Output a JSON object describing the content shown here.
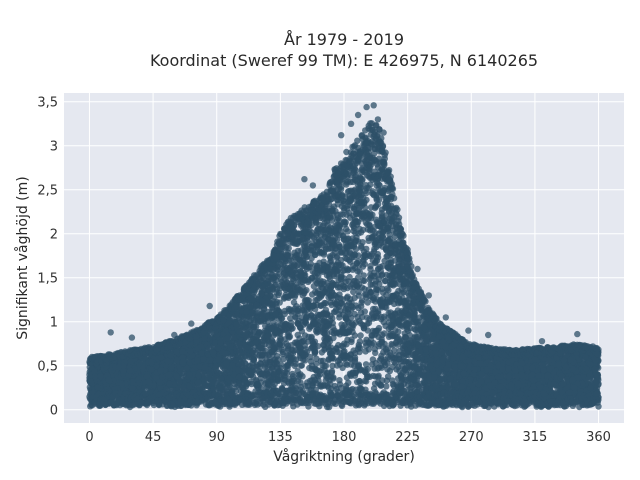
{
  "chart_data": {
    "type": "scatter",
    "title_line1": "År 1979 - 2019",
    "title_line2": "Koordinat (Sweref 99 TM): E 426975, N 6140265",
    "xlabel": "Vågriktning (grader)",
    "ylabel": "Signifikant våghöjd (m)",
    "xlim": [
      -18,
      378
    ],
    "ylim": [
      -0.15,
      3.6
    ],
    "xticks": [
      0,
      45,
      90,
      135,
      180,
      225,
      270,
      315,
      360
    ],
    "yticks": [
      0,
      0.5,
      1,
      1.5,
      2,
      2.5,
      3,
      3.5
    ],
    "ytick_labels": [
      "0",
      "0,5",
      "1",
      "1,5",
      "2",
      "2,5",
      "3",
      "3,5"
    ],
    "grid": true,
    "background": "#e5e8f0",
    "marker_color": "#2e5068",
    "envelope": {
      "x": [
        0,
        10,
        20,
        30,
        45,
        60,
        75,
        90,
        100,
        110,
        120,
        130,
        135,
        140,
        150,
        155,
        160,
        165,
        170,
        175,
        180,
        185,
        190,
        195,
        200,
        205,
        210,
        215,
        220,
        225,
        230,
        240,
        250,
        260,
        270,
        285,
        300,
        315,
        330,
        345,
        360
      ],
      "y_max": [
        0.6,
        0.62,
        0.65,
        0.68,
        0.72,
        0.8,
        0.9,
        1.05,
        1.2,
        1.4,
        1.6,
        1.8,
        2.0,
        2.15,
        2.3,
        2.35,
        2.4,
        2.45,
        2.6,
        2.8,
        2.9,
        3.0,
        3.1,
        3.2,
        3.3,
        3.2,
        2.9,
        2.5,
        2.1,
        1.8,
        1.5,
        1.15,
        0.95,
        0.85,
        0.75,
        0.7,
        0.68,
        0.7,
        0.72,
        0.75,
        0.7
      ]
    },
    "outliers": [
      {
        "x": 15,
        "y": 0.88
      },
      {
        "x": 30,
        "y": 0.82
      },
      {
        "x": 60,
        "y": 0.85
      },
      {
        "x": 72,
        "y": 0.98
      },
      {
        "x": 85,
        "y": 1.18
      },
      {
        "x": 95,
        "y": 1.1
      },
      {
        "x": 152,
        "y": 2.62
      },
      {
        "x": 158,
        "y": 2.55
      },
      {
        "x": 178,
        "y": 3.12
      },
      {
        "x": 185,
        "y": 3.25
      },
      {
        "x": 190,
        "y": 3.35
      },
      {
        "x": 196,
        "y": 3.44
      },
      {
        "x": 201,
        "y": 3.46
      },
      {
        "x": 204,
        "y": 3.3
      },
      {
        "x": 208,
        "y": 3.15
      },
      {
        "x": 225,
        "y": 1.82
      },
      {
        "x": 232,
        "y": 1.6
      },
      {
        "x": 240,
        "y": 1.3
      },
      {
        "x": 252,
        "y": 1.05
      },
      {
        "x": 268,
        "y": 0.9
      },
      {
        "x": 282,
        "y": 0.85
      },
      {
        "x": 320,
        "y": 0.78
      },
      {
        "x": 345,
        "y": 0.86
      },
      {
        "x": 356,
        "y": 0.72
      }
    ]
  }
}
